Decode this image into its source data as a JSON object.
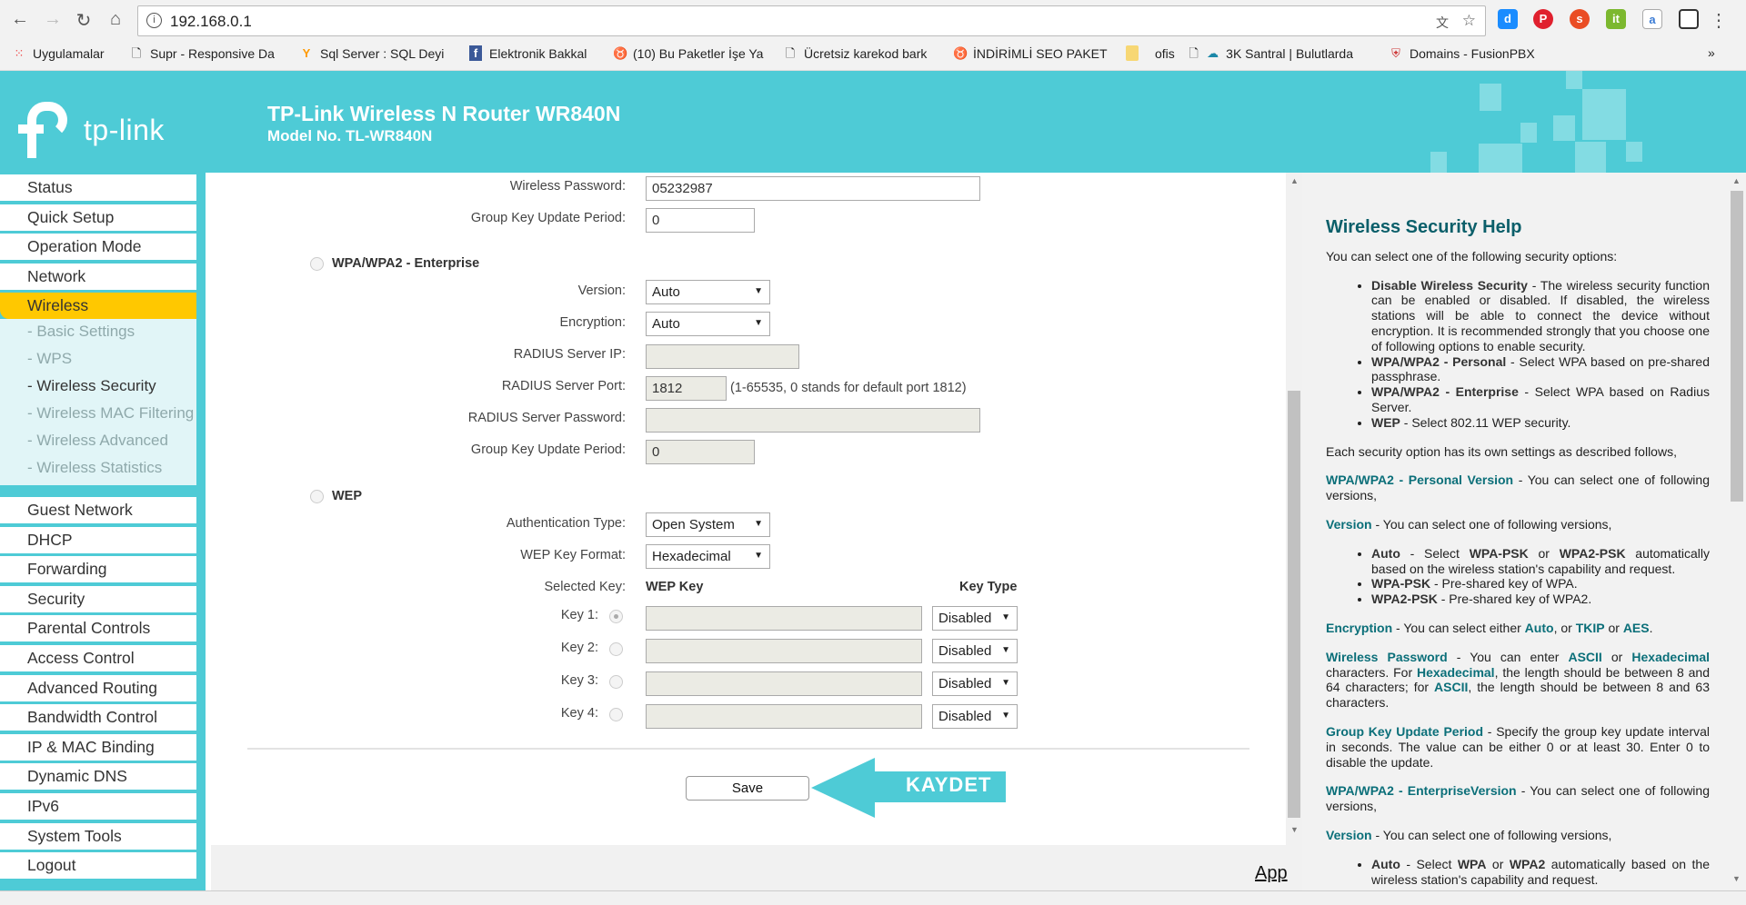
{
  "browser": {
    "url": "192.168.0.1",
    "bookmarks": [
      "Uygulamalar",
      "Supr - Responsive Da",
      "Sql Server : SQL Deyi",
      "Elektronik Bakkal",
      "(10) Bu Paketler İşe Ya",
      "Ücretsiz karekod bark",
      "İNDİRİMLİ SEO PAKET",
      "ofis",
      "3K Santral | Bulutlarda",
      "Domains - FusionPBX"
    ],
    "more": "»"
  },
  "header": {
    "logo": "tp-link",
    "title": "TP-Link Wireless N Router WR840N",
    "model": "Model No. TL-WR840N",
    "color": "#4ecbd6"
  },
  "sidebar": {
    "items": [
      "Status",
      "Quick Setup",
      "Operation Mode",
      "Network",
      "Wireless"
    ],
    "sub": [
      "- Basic Settings",
      "- WPS",
      "- Wireless Security",
      "- Wireless MAC Filtering",
      "- Wireless Advanced",
      "- Wireless Statistics"
    ],
    "items2": [
      "Guest Network",
      "DHCP",
      "Forwarding",
      "Security",
      "Parental Controls",
      "Access Control",
      "Advanced Routing",
      "Bandwidth Control",
      "IP & MAC Binding",
      "Dynamic DNS",
      "IPv6",
      "System Tools",
      "Logout"
    ]
  },
  "form": {
    "personal": {
      "password_label": "Wireless Password:",
      "password": "05232987",
      "gkup_label": "Group Key Update Period:",
      "gkup": "0"
    },
    "enterprise": {
      "title": "WPA/WPA2 - Enterprise",
      "version_label": "Version:",
      "version": "Auto",
      "encryption_label": "Encryption:",
      "encryption": "Auto",
      "ip_label": "RADIUS Server IP:",
      "ip": "",
      "port_label": "RADIUS Server Port:",
      "port": "1812",
      "port_hint": "(1-65535, 0 stands for default port 1812)",
      "pw_label": "RADIUS Server Password:",
      "pw": "",
      "gkup_label": "Group Key Update Period:",
      "gkup": "0"
    },
    "wep": {
      "title": "WEP",
      "auth_label": "Authentication Type:",
      "auth": "Open System",
      "format_label": "WEP Key Format:",
      "format": "Hexadecimal",
      "selected_label": "Selected Key:",
      "col_key": "WEP Key",
      "col_type": "Key Type",
      "keys": [
        {
          "label": "Key 1:",
          "type": "Disabled"
        },
        {
          "label": "Key 2:",
          "type": "Disabled"
        },
        {
          "label": "Key 3:",
          "type": "Disabled"
        },
        {
          "label": "Key 4:",
          "type": "Disabled"
        }
      ]
    },
    "save": "Save",
    "annotation": "KAYDET"
  },
  "footer": {
    "link": "App"
  },
  "help": {
    "title": "Wireless Security Help"
  }
}
